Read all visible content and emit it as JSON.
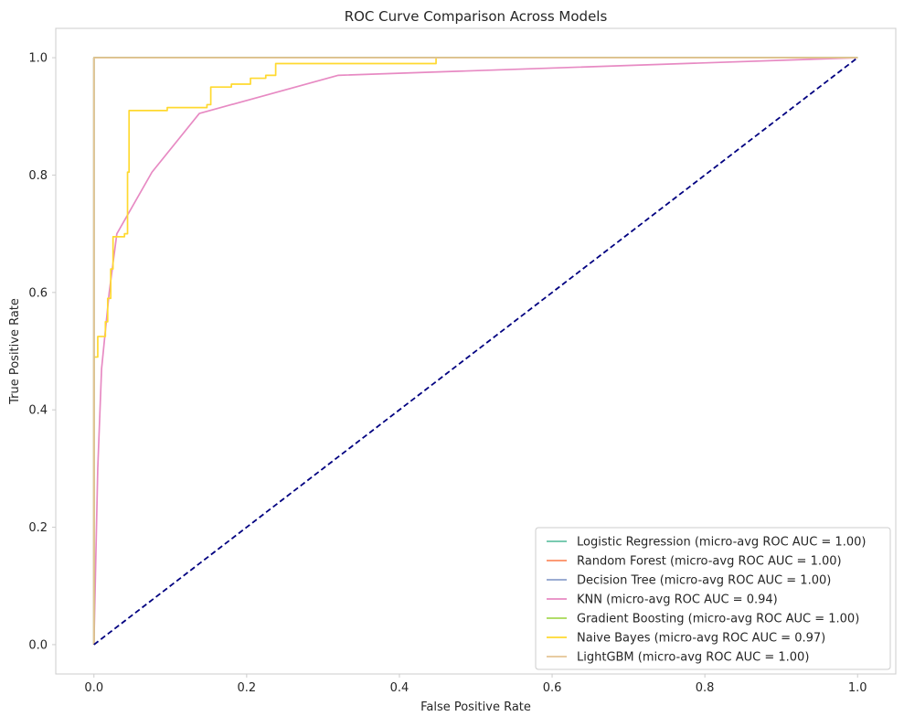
{
  "chart_data": {
    "type": "line",
    "title": "ROC Curve Comparison Across Models",
    "xlabel": "False Positive Rate",
    "ylabel": "True Positive Rate",
    "xlim": [
      -0.05,
      1.05
    ],
    "ylim": [
      -0.05,
      1.05
    ],
    "xticks": [
      0.0,
      0.2,
      0.4,
      0.6,
      0.8,
      1.0
    ],
    "yticks": [
      0.0,
      0.2,
      0.4,
      0.6,
      0.8,
      1.0
    ],
    "xtick_labels": [
      "0.0",
      "0.2",
      "0.4",
      "0.6",
      "0.8",
      "1.0"
    ],
    "ytick_labels": [
      "0.0",
      "0.2",
      "0.4",
      "0.6",
      "0.8",
      "1.0"
    ],
    "grid": false,
    "legend_position": "lower-right",
    "series": [
      {
        "name": "Logistic Regression (micro-avg ROC AUC = 1.00)",
        "color": "#66c2a5",
        "points": [
          [
            0,
            0
          ],
          [
            0,
            1.0
          ],
          [
            1.0,
            1.0
          ]
        ]
      },
      {
        "name": "Random Forest (micro-avg ROC AUC = 1.00)",
        "color": "#fc8d62",
        "points": [
          [
            0,
            0
          ],
          [
            0,
            1.0
          ],
          [
            1.0,
            1.0
          ]
        ]
      },
      {
        "name": "Decision Tree (micro-avg ROC AUC = 1.00)",
        "color": "#8da0cb",
        "points": [
          [
            0,
            0
          ],
          [
            0,
            1.0
          ],
          [
            1.0,
            1.0
          ]
        ]
      },
      {
        "name": "KNN (micro-avg ROC AUC = 0.94)",
        "color": "#e78ac3",
        "points": [
          [
            0,
            0
          ],
          [
            0.002,
            0.12
          ],
          [
            0.005,
            0.3
          ],
          [
            0.01,
            0.47
          ],
          [
            0.02,
            0.6
          ],
          [
            0.03,
            0.7
          ],
          [
            0.076,
            0.805
          ],
          [
            0.138,
            0.905
          ],
          [
            0.32,
            0.97
          ],
          [
            1.0,
            1.0
          ]
        ]
      },
      {
        "name": "Gradient Boosting (micro-avg ROC AUC = 1.00)",
        "color": "#a6d854",
        "points": [
          [
            0,
            0
          ],
          [
            0,
            1.0
          ],
          [
            1.0,
            1.0
          ]
        ]
      },
      {
        "name": "Naive Bayes (micro-avg ROC AUC = 0.97)",
        "color": "#ffd92f",
        "points": [
          [
            0,
            0
          ],
          [
            0,
            0.49
          ],
          [
            0.005,
            0.49
          ],
          [
            0.005,
            0.525
          ],
          [
            0.015,
            0.525
          ],
          [
            0.015,
            0.55
          ],
          [
            0.018,
            0.55
          ],
          [
            0.018,
            0.59
          ],
          [
            0.022,
            0.59
          ],
          [
            0.022,
            0.64
          ],
          [
            0.025,
            0.64
          ],
          [
            0.025,
            0.695
          ],
          [
            0.04,
            0.695
          ],
          [
            0.04,
            0.7
          ],
          [
            0.044,
            0.7
          ],
          [
            0.044,
            0.805
          ],
          [
            0.046,
            0.805
          ],
          [
            0.046,
            0.91
          ],
          [
            0.096,
            0.91
          ],
          [
            0.096,
            0.915
          ],
          [
            0.148,
            0.915
          ],
          [
            0.148,
            0.92
          ],
          [
            0.153,
            0.92
          ],
          [
            0.153,
            0.95
          ],
          [
            0.18,
            0.95
          ],
          [
            0.18,
            0.955
          ],
          [
            0.205,
            0.955
          ],
          [
            0.205,
            0.965
          ],
          [
            0.225,
            0.965
          ],
          [
            0.225,
            0.97
          ],
          [
            0.238,
            0.97
          ],
          [
            0.238,
            0.99
          ],
          [
            0.448,
            0.99
          ],
          [
            0.448,
            1.0
          ],
          [
            1.0,
            1.0
          ]
        ]
      },
      {
        "name": "LightGBM (micro-avg ROC AUC = 1.00)",
        "color": "#e5c494",
        "points": [
          [
            0,
            0
          ],
          [
            0,
            1.0
          ],
          [
            1.0,
            1.0
          ]
        ]
      }
    ],
    "reference_line": {
      "color": "#000080",
      "style": "dashed",
      "points": [
        [
          0,
          0
        ],
        [
          1,
          1
        ]
      ]
    }
  }
}
